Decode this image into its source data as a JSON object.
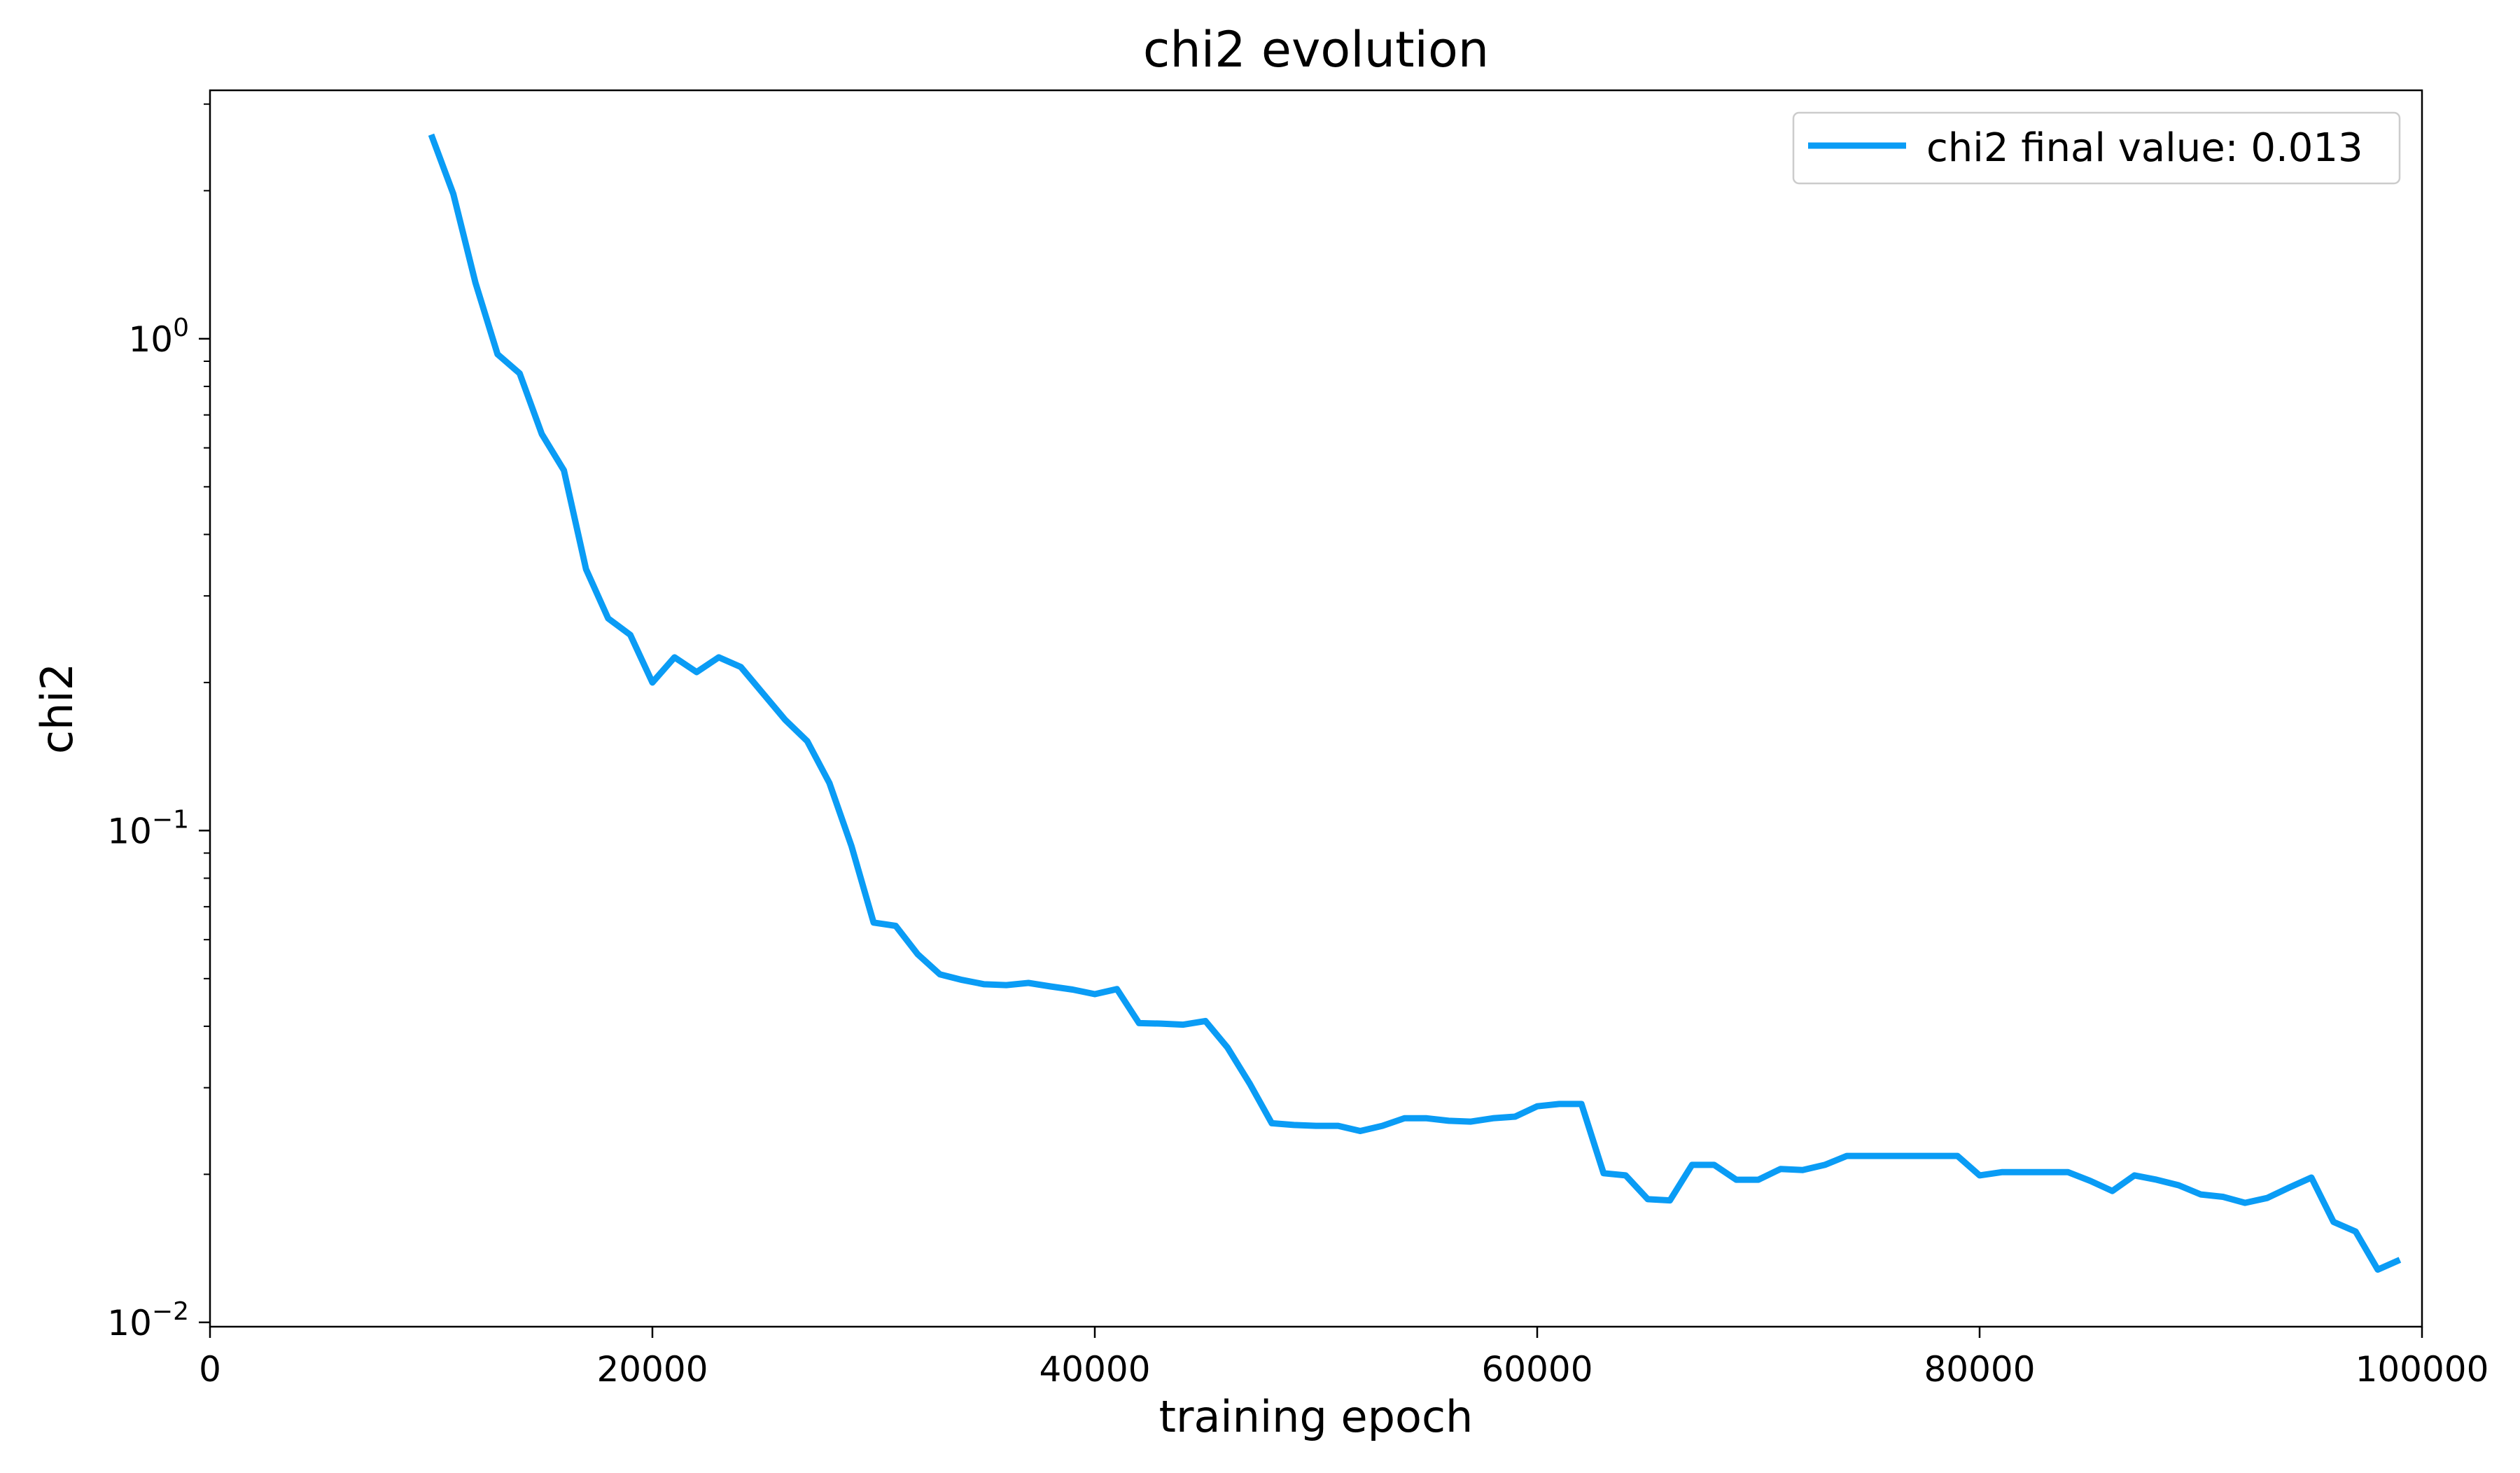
{
  "chart_data": {
    "type": "line",
    "title": "chi2 evolution",
    "xlabel": "training epoch",
    "ylabel": "chi2",
    "xlim": [
      0,
      100000
    ],
    "ylim": [
      0.0098,
      3.2
    ],
    "y_scale": "log",
    "grid": false,
    "legend_position": "top-right",
    "x_ticks": [
      {
        "value": 0,
        "label": "0"
      },
      {
        "value": 20000,
        "label": "20000"
      },
      {
        "value": 40000,
        "label": "40000"
      },
      {
        "value": 60000,
        "label": "60000"
      },
      {
        "value": 80000,
        "label": "80000"
      },
      {
        "value": 100000,
        "label": "100000"
      }
    ],
    "y_ticks": [
      {
        "value": 0.01,
        "base": "10",
        "exponent": "−2"
      },
      {
        "value": 0.1,
        "base": "10",
        "exponent": "−1"
      },
      {
        "value": 1,
        "base": "10",
        "exponent": "0"
      }
    ],
    "y_minor_ticks": [
      0.02,
      0.03,
      0.04,
      0.05,
      0.06,
      0.07,
      0.08,
      0.09,
      0.2,
      0.3,
      0.4,
      0.5,
      0.6,
      0.7,
      0.8,
      0.9,
      2,
      3
    ],
    "series": [
      {
        "name": "chi2 final value: 0.013",
        "color": "#0a9cf5",
        "x": [
          10000,
          11000,
          12000,
          13000,
          14000,
          15000,
          16000,
          17000,
          18000,
          19000,
          20000,
          21000,
          22000,
          23000,
          24000,
          25000,
          26000,
          27000,
          28000,
          29000,
          30000,
          31000,
          32000,
          33000,
          34000,
          35000,
          36000,
          37000,
          38000,
          39000,
          40000,
          41000,
          42000,
          43000,
          44000,
          45000,
          46000,
          47000,
          48000,
          49000,
          50000,
          51000,
          52000,
          53000,
          54000,
          55000,
          56000,
          57000,
          58000,
          59000,
          60000,
          61000,
          62000,
          63000,
          64000,
          65000,
          66000,
          67000,
          68000,
          69000,
          70000,
          71000,
          72000,
          73000,
          74000,
          75000,
          76000,
          77000,
          78000,
          79000,
          80000,
          81000,
          82000,
          83000,
          84000,
          85000,
          86000,
          87000,
          88000,
          89000,
          90000,
          91000,
          92000,
          93000,
          94000,
          95000,
          96000,
          97000,
          98000,
          99000
        ],
        "y": [
          2.6,
          1.97,
          1.3,
          0.93,
          0.85,
          0.64,
          0.54,
          0.34,
          0.27,
          0.25,
          0.2,
          0.225,
          0.21,
          0.225,
          0.215,
          0.19,
          0.168,
          0.152,
          0.125,
          0.093,
          0.065,
          0.064,
          0.056,
          0.051,
          0.0497,
          0.0487,
          0.0485,
          0.049,
          0.0482,
          0.0475,
          0.0465,
          0.0476,
          0.0406,
          0.0405,
          0.0403,
          0.041,
          0.0362,
          0.0306,
          0.0254,
          0.0252,
          0.0251,
          0.0251,
          0.0245,
          0.0251,
          0.026,
          0.026,
          0.0257,
          0.0256,
          0.026,
          0.0262,
          0.0275,
          0.0278,
          0.0278,
          0.0201,
          0.0199,
          0.0178,
          0.0177,
          0.0209,
          0.0209,
          0.0195,
          0.0195,
          0.0205,
          0.0204,
          0.0209,
          0.0218,
          0.0218,
          0.0218,
          0.0218,
          0.0218,
          0.0218,
          0.0199,
          0.0202,
          0.0202,
          0.0202,
          0.0202,
          0.0194,
          0.0185,
          0.0199,
          0.0195,
          0.019,
          0.0182,
          0.018,
          0.0175,
          0.0179,
          0.0188,
          0.0197,
          0.016,
          0.0153,
          0.0128,
          0.0134
        ]
      }
    ]
  }
}
